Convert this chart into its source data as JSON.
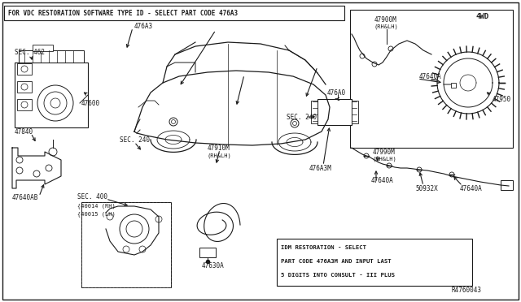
{
  "bg_color": "#ffffff",
  "line_color": "#1a1a1a",
  "text_color": "#1a1a1a",
  "fig_width": 6.4,
  "fig_height": 3.72,
  "dpi": 100,
  "top_note": "FOR VDC RESTORATION SOFTWARE TYPE ID - SELECT PART CODE 476A3",
  "bottom_note_lines": [
    "IDM RESTORATION - SELECT",
    "PART CODE 476A3M AND INPUT LAST",
    "5 DIGITS INTO CONSULT - III PLUS"
  ],
  "ref_code": "R4760043",
  "corner_label": "4WD"
}
